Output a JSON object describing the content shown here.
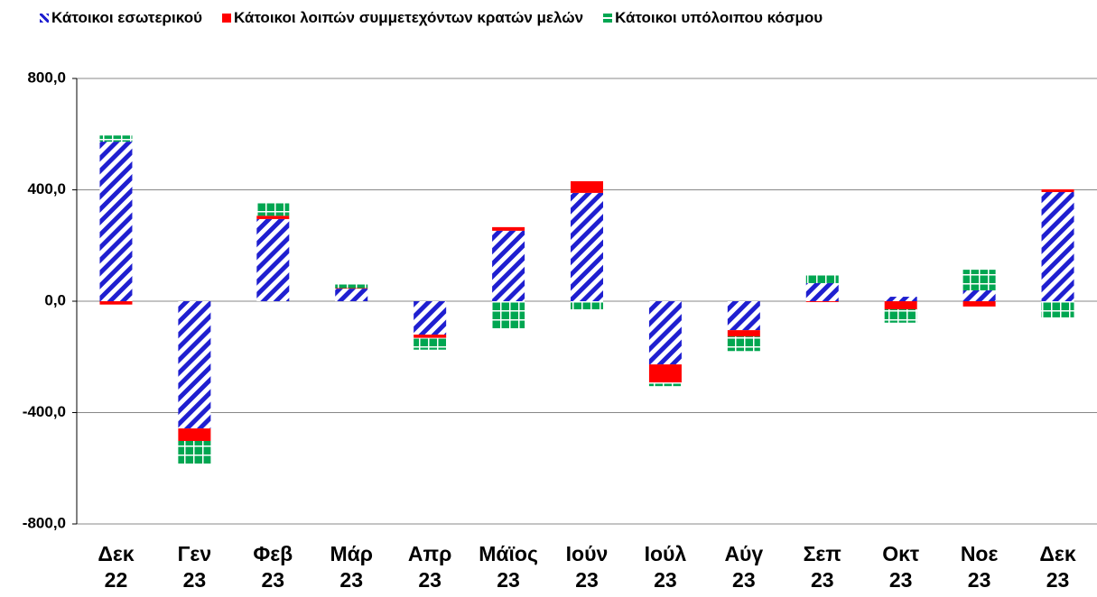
{
  "chart_data": {
    "type": "bar",
    "stacked": true,
    "categories": [
      "Δεκ\n22",
      "Γεν\n23",
      "Φεβ\n23",
      "Μάρ\n23",
      "Απρ\n23",
      "Μάϊος\n23",
      "Ιούν\n23",
      "Ιούλ\n23",
      "Αύγ\n23",
      "Σεπ\n23",
      "Οκτ\n23",
      "Νοε\n23",
      "Δεκ\n23"
    ],
    "series": [
      {
        "name": "Κάτοικοι εσωτερικού",
        "color": "#1f1fd0",
        "pattern": "diagonal",
        "values": [
          573,
          -457,
          295,
          45,
          -120,
          253,
          389,
          -227,
          -104,
          65,
          16,
          39,
          392
        ]
      },
      {
        "name": "Κάτοικοι λοιπών συμμετεχόντων κρατών μελών",
        "color": "#ff0000",
        "pattern": "solid",
        "values": [
          -12,
          -45,
          12,
          2,
          -12,
          13,
          42,
          -65,
          -23,
          -3,
          -29,
          -19,
          10
        ]
      },
      {
        "name": "Κάτοικοι υπόλοιπου κόσμου",
        "color": "#00a651",
        "pattern": "grid",
        "values": [
          22,
          -84,
          48,
          13,
          -42,
          -97,
          -29,
          -13,
          -52,
          29,
          -48,
          74,
          -58
        ]
      }
    ],
    "ylim": [
      -800,
      800
    ],
    "yticks": [
      {
        "value": -800,
        "label": "-800,0"
      },
      {
        "value": -400,
        "label": "-400,0"
      },
      {
        "value": 0,
        "label": "0,0"
      },
      {
        "value": 400,
        "label": "400,0"
      },
      {
        "value": 800,
        "label": "800,0"
      }
    ],
    "grid": true,
    "legend": "top"
  }
}
